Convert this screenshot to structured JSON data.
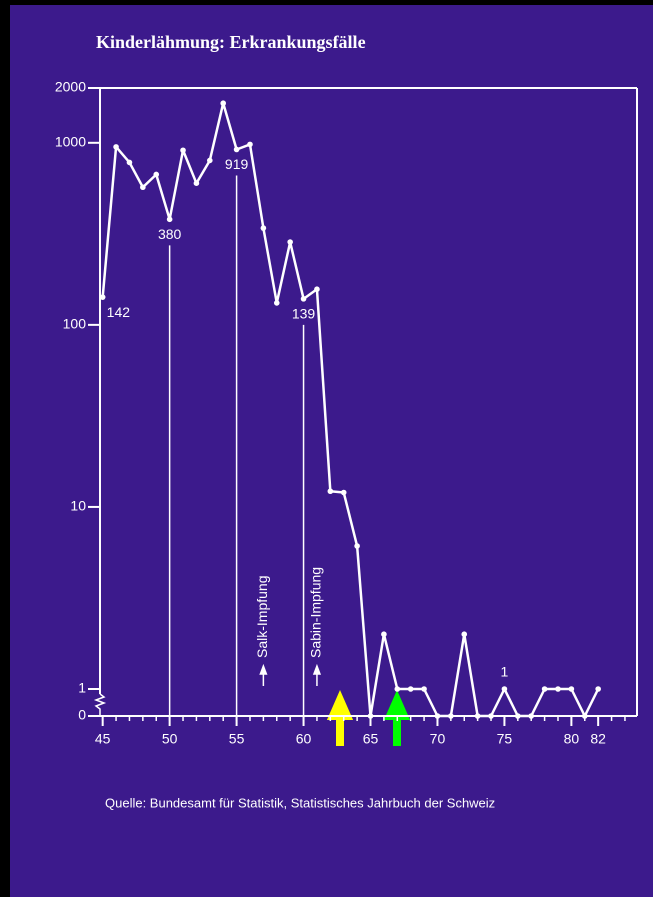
{
  "chart_data": {
    "type": "line",
    "title": "Kinderlähmung: Erkrankungsfälle",
    "source": "Quelle: Bundesamt für Statistik, Statistisches Jahrbuch der Schweiz",
    "x": [
      45,
      46,
      47,
      48,
      49,
      50,
      51,
      52,
      53,
      54,
      55,
      56,
      57,
      58,
      59,
      60,
      61,
      62,
      63,
      64,
      65,
      66,
      67,
      68,
      69,
      70,
      71,
      72,
      73,
      74,
      75,
      76,
      77,
      78,
      79,
      80,
      81,
      82
    ],
    "series": [
      {
        "name": "Erkrankungsfälle",
        "color": "#ffffff",
        "values": [
          142,
          950,
          780,
          570,
          670,
          380,
          910,
          600,
          800,
          1650,
          919,
          980,
          340,
          132,
          285,
          139,
          157,
          12.2,
          12,
          6.1,
          0,
          2,
          1,
          1,
          1,
          0,
          0,
          2,
          0,
          0,
          1,
          0,
          0,
          1,
          1,
          1,
          0,
          1
        ],
        "value_labels": [
          "142",
          null,
          null,
          null,
          null,
          "380",
          null,
          null,
          null,
          null,
          "919",
          null,
          null,
          null,
          null,
          "139",
          null,
          null,
          null,
          null,
          null,
          null,
          null,
          null,
          null,
          null,
          null,
          null,
          null,
          null,
          "1",
          null,
          null,
          null,
          null,
          null,
          null,
          null
        ]
      }
    ],
    "drop_lines": [
      50,
      55,
      60
    ],
    "annotations": [
      {
        "text": "Salk-Impfung",
        "x": 57
      },
      {
        "text": "Sabin-Impfung",
        "x": 61
      }
    ],
    "xlim": [
      44.8,
      84.9
    ],
    "xticks": [
      45,
      50,
      55,
      60,
      65,
      70,
      75,
      80,
      82
    ],
    "ylim": [
      0,
      2000
    ],
    "yticks": [
      0,
      1,
      10,
      100,
      1000,
      2000
    ],
    "log_scale": true,
    "axis_break": true
  }
}
